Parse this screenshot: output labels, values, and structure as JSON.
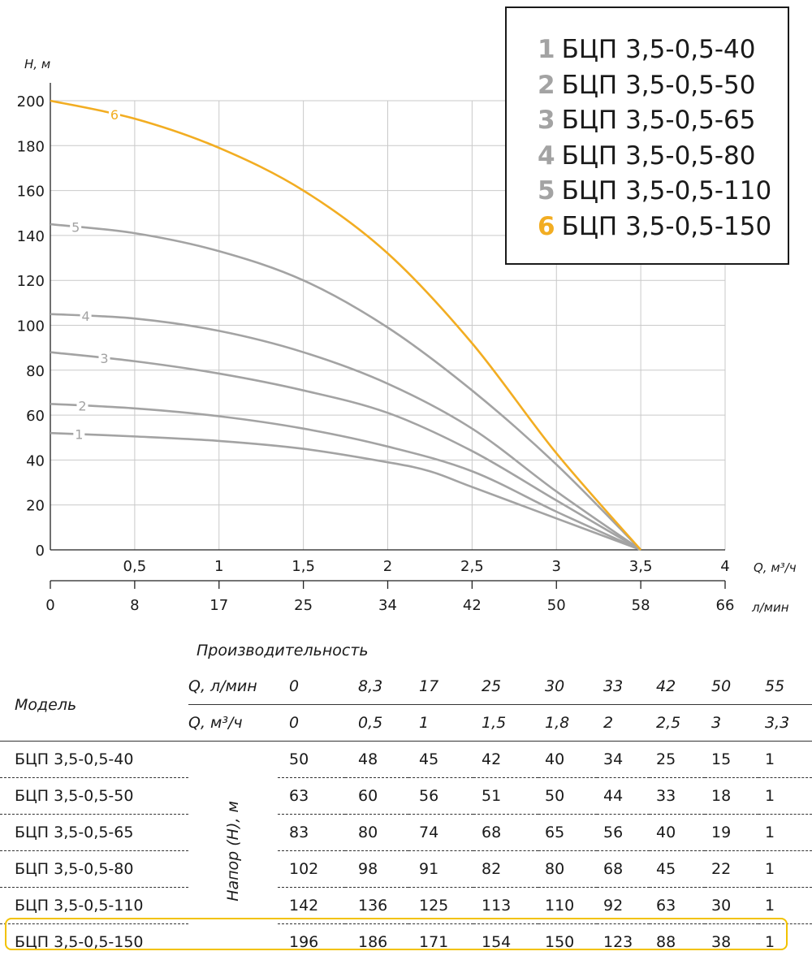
{
  "chart_data": {
    "type": "line",
    "ylabel": "H, м",
    "xlabel": "Q, м³/ч",
    "xlabel2": "л/мин",
    "yticks": [
      "0",
      "20",
      "40",
      "60",
      "80",
      "100",
      "120",
      "140",
      "160",
      "180",
      "200"
    ],
    "xticks_top": [
      "0,5",
      "1",
      "1,5",
      "2",
      "2,5",
      "3",
      "3,5",
      "4"
    ],
    "xticks_bottom": [
      "0",
      "8",
      "17",
      "25",
      "34",
      "42",
      "50",
      "58",
      "66"
    ],
    "ylim": [
      0,
      200
    ],
    "xlim": [
      0,
      4
    ],
    "grid": true,
    "colors": {
      "gray": "#a3a3a3",
      "orange": "#f2ad22"
    },
    "series": [
      {
        "name": "1",
        "legend": "БЦП 3,5-0,5-40",
        "x": [
          0,
          0.5,
          1,
          1.5,
          2,
          2.25,
          2.5,
          3,
          3.5
        ],
        "y": [
          52,
          50.5,
          48.5,
          45,
          39,
          35,
          28,
          14,
          0
        ]
      },
      {
        "name": "2",
        "legend": "БЦП 3,5-0,5-50",
        "x": [
          0,
          0.5,
          1,
          1.5,
          2,
          2.5,
          3,
          3.5
        ],
        "y": [
          65,
          63,
          59.5,
          54,
          46,
          35,
          17,
          0
        ]
      },
      {
        "name": "3",
        "legend": "БЦП 3,5-0,5-65",
        "x": [
          0,
          0.5,
          1,
          1.5,
          2,
          2.5,
          3,
          3.5
        ],
        "y": [
          88,
          84,
          78.5,
          71,
          61,
          44,
          22,
          0
        ]
      },
      {
        "name": "4",
        "legend": "БЦП 3,5-0,5-80",
        "x": [
          0,
          0.5,
          1,
          1.5,
          2,
          2.5,
          3,
          3.5
        ],
        "y": [
          105,
          103,
          97.5,
          88,
          74,
          54,
          26,
          0
        ]
      },
      {
        "name": "5",
        "legend": "БЦП 3,5-0,5-110",
        "x": [
          0,
          0.5,
          1,
          1.5,
          2,
          2.5,
          3,
          3.5
        ],
        "y": [
          145,
          141,
          133,
          120,
          99,
          71,
          38,
          0
        ]
      },
      {
        "name": "6",
        "legend": "БЦП 3,5-0,5-150",
        "x": [
          0,
          0.5,
          1,
          1.5,
          2,
          2.5,
          3,
          3.5
        ],
        "y": [
          200,
          192,
          179,
          160,
          132,
          92,
          43,
          0
        ]
      }
    ]
  },
  "table": {
    "group_header": "Производительность",
    "model_header": "Модель",
    "head_label": "Напор (H), м",
    "q_lmin_label": "Q, л/мин",
    "q_m3h_label": "Q, м³/ч",
    "q_lmin": [
      "0",
      "8,3",
      "17",
      "25",
      "30",
      "33",
      "42",
      "50",
      "55"
    ],
    "q_m3h": [
      "0",
      "0,5",
      "1",
      "1,5",
      "1,8",
      "2",
      "2,5",
      "3",
      "3,3"
    ],
    "rows": [
      {
        "model": "БЦП 3,5-0,5-40",
        "values": [
          "50",
          "48",
          "45",
          "42",
          "40",
          "34",
          "25",
          "15",
          "1"
        ]
      },
      {
        "model": "БЦП 3,5-0,5-50",
        "values": [
          "63",
          "60",
          "56",
          "51",
          "50",
          "44",
          "33",
          "18",
          "1"
        ]
      },
      {
        "model": "БЦП 3,5-0,5-65",
        "values": [
          "83",
          "80",
          "74",
          "68",
          "65",
          "56",
          "40",
          "19",
          "1"
        ]
      },
      {
        "model": "БЦП 3,5-0,5-80",
        "values": [
          "102",
          "98",
          "91",
          "82",
          "80",
          "68",
          "45",
          "22",
          "1"
        ]
      },
      {
        "model": "БЦП 3,5-0,5-110",
        "values": [
          "142",
          "136",
          "125",
          "113",
          "110",
          "92",
          "63",
          "30",
          "1"
        ]
      },
      {
        "model": "БЦП 3,5-0,5-150",
        "values": [
          "196",
          "186",
          "171",
          "154",
          "150",
          "123",
          "88",
          "38",
          "1"
        ]
      }
    ]
  }
}
